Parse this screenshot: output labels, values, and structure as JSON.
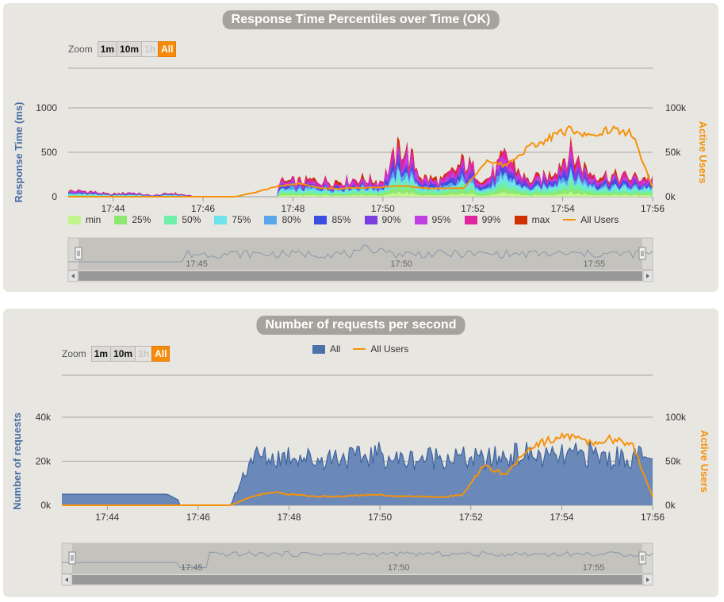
{
  "chart_data": [
    {
      "type": "area",
      "title": "Response Time Percentiles over Time (OK)",
      "ylabel": "Response Time (ms)",
      "y2label": "Active Users",
      "ylim": [
        0,
        1000
      ],
      "y2lim": [
        0,
        100000
      ],
      "yticks": [
        "0",
        "500",
        "1000"
      ],
      "y2ticks": [
        "0k",
        "50k",
        "100k"
      ],
      "xticks": [
        "17:44",
        "17:46",
        "17:48",
        "17:50",
        "17:52",
        "17:54",
        "17:56"
      ],
      "x_minutes": [
        0,
        1,
        3,
        5,
        7,
        9,
        11,
        13
      ],
      "zoom": {
        "label": "Zoom",
        "buttons": [
          "1m",
          "10m",
          "1h",
          "All"
        ],
        "selected": "All",
        "disabled": [
          "1h"
        ]
      },
      "navigator_ticks": [
        "17:45",
        "17:50",
        "17:55"
      ],
      "series": [
        {
          "name": "min",
          "color": "#c3f58e"
        },
        {
          "name": "25%",
          "color": "#8ee870"
        },
        {
          "name": "50%",
          "color": "#6ef0a8"
        },
        {
          "name": "75%",
          "color": "#6fe3e9"
        },
        {
          "name": "80%",
          "color": "#5aa6ea"
        },
        {
          "name": "85%",
          "color": "#3a4fe0"
        },
        {
          "name": "90%",
          "color": "#7b3de0"
        },
        {
          "name": "95%",
          "color": "#c03fe0"
        },
        {
          "name": "99%",
          "color": "#e0249e"
        },
        {
          "name": "max",
          "color": "#d03000"
        },
        {
          "name": "All Users",
          "color": "#f5920b",
          "type": "line"
        }
      ],
      "approx_points": {
        "max_ms": [
          95,
          88,
          40,
          70,
          20,
          60,
          10,
          10,
          10,
          210,
          230,
          240,
          260,
          250,
          290,
          250,
          820,
          300,
          260,
          560,
          250,
          640,
          250,
          330,
          720,
          380,
          330,
          300,
          310
        ],
        "median_ms": [
          15,
          20,
          10,
          20,
          5,
          15,
          5,
          5,
          5,
          60,
          80,
          100,
          90,
          95,
          110,
          95,
          220,
          110,
          95,
          140,
          95,
          160,
          95,
          140,
          180,
          120,
          110,
          120,
          70
        ],
        "active_users": [
          0,
          0,
          0,
          0,
          0,
          0,
          0,
          0,
          0,
          5000,
          12000,
          15000,
          10000,
          9000,
          10000,
          11000,
          12000,
          10000,
          9000,
          10000,
          40000,
          35000,
          55000,
          65000,
          75000,
          70000,
          75000,
          72000,
          10000
        ]
      }
    },
    {
      "type": "area",
      "title": "Number of requests per second",
      "ylabel": "Number of requests",
      "y2label": "Active Users",
      "ylim": [
        0,
        40000
      ],
      "y2lim": [
        0,
        100000
      ],
      "yticks": [
        "0k",
        "20k",
        "40k"
      ],
      "y2ticks": [
        "0k",
        "50k",
        "100k"
      ],
      "xticks": [
        "17:44",
        "17:46",
        "17:48",
        "17:50",
        "17:52",
        "17:54",
        "17:56"
      ],
      "zoom": {
        "label": "Zoom",
        "buttons": [
          "1m",
          "10m",
          "1h",
          "All"
        ],
        "selected": "All",
        "disabled": [
          "1h"
        ]
      },
      "navigator_ticks": [
        "17:45",
        "17:50",
        "17:55"
      ],
      "series": [
        {
          "name": "All",
          "color": "#4a72a8"
        },
        {
          "name": "All Users",
          "color": "#f5920b",
          "type": "line"
        }
      ],
      "approx_points": {
        "requests": [
          5000,
          5000,
          5000,
          5000,
          5000,
          5000,
          0,
          0,
          0,
          23000,
          22000,
          24000,
          21000,
          23000,
          22000,
          24000,
          21000,
          22000,
          23000,
          22000,
          21000,
          23000,
          24000,
          22000,
          23000,
          24000,
          22000,
          23000,
          21000
        ],
        "active_users": [
          0,
          0,
          0,
          0,
          0,
          0,
          0,
          0,
          0,
          10000,
          15000,
          12000,
          10000,
          10000,
          11000,
          12000,
          10000,
          10000,
          9000,
          12000,
          45000,
          35000,
          60000,
          75000,
          80000,
          70000,
          75000,
          70000,
          10000
        ]
      }
    }
  ]
}
